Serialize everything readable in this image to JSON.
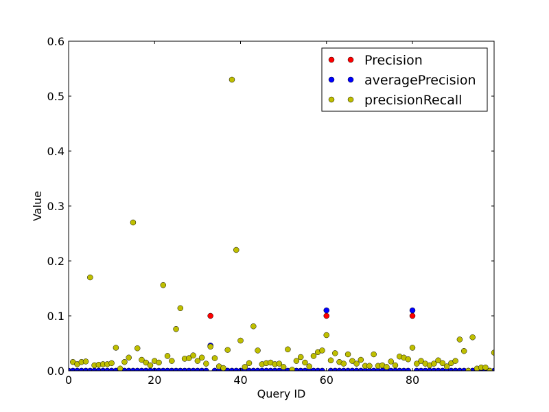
{
  "chart_data": {
    "type": "scatter",
    "title": "",
    "xlabel": "Query ID",
    "ylabel": "Value",
    "xlim": [
      0,
      99
    ],
    "ylim": [
      0,
      0.6
    ],
    "xticks": [
      0,
      20,
      40,
      60,
      80
    ],
    "yticks": [
      0.0,
      0.1,
      0.2,
      0.3,
      0.4,
      0.5,
      0.6
    ],
    "xtick_labels": [
      "0",
      "20",
      "40",
      "60",
      "80"
    ],
    "ytick_labels": [
      "0.0",
      "0.1",
      "0.2",
      "0.3",
      "0.4",
      "0.5",
      "0.6"
    ],
    "grid": false,
    "legend_position": "top-right",
    "series": [
      {
        "name": "Precision",
        "color": "#ff0000",
        "x": [
          0,
          1,
          2,
          3,
          4,
          5,
          6,
          7,
          8,
          9,
          10,
          11,
          12,
          13,
          14,
          15,
          16,
          17,
          18,
          19,
          20,
          21,
          22,
          23,
          24,
          25,
          26,
          27,
          28,
          29,
          30,
          31,
          32,
          33,
          34,
          35,
          36,
          37,
          38,
          39,
          40,
          41,
          42,
          43,
          44,
          45,
          46,
          47,
          48,
          49,
          50,
          51,
          52,
          53,
          54,
          55,
          56,
          57,
          58,
          59,
          60,
          61,
          62,
          63,
          64,
          65,
          66,
          67,
          68,
          69,
          70,
          71,
          72,
          73,
          74,
          75,
          76,
          77,
          78,
          79,
          80,
          81,
          82,
          83,
          84,
          85,
          86,
          87,
          88,
          89,
          90,
          91,
          92,
          93,
          94,
          95,
          96,
          97,
          98,
          99
        ],
        "y": [
          0,
          0,
          0,
          0,
          0,
          0,
          0,
          0,
          0,
          0,
          0,
          0,
          0,
          0,
          0,
          0,
          0,
          0,
          0,
          0,
          0,
          0,
          0,
          0,
          0,
          0,
          0,
          0,
          0,
          0,
          0,
          0,
          0,
          0.1,
          0,
          0,
          0,
          0,
          0,
          0,
          0,
          0,
          0,
          0,
          0,
          0,
          0,
          0,
          0,
          0,
          0,
          0,
          0,
          0,
          0,
          0,
          0,
          0,
          0,
          0,
          0.1,
          0,
          0,
          0,
          0,
          0,
          0,
          0,
          0,
          0,
          0,
          0,
          0,
          0,
          0,
          0,
          0,
          0,
          0,
          0,
          0.1,
          0,
          0,
          0,
          0,
          0,
          0,
          0,
          0,
          0,
          0,
          0,
          0,
          0,
          0,
          0,
          0,
          0,
          0,
          0
        ]
      },
      {
        "name": "averagePrecision",
        "color": "#0000ff",
        "x": [
          0,
          1,
          2,
          3,
          4,
          5,
          6,
          7,
          8,
          9,
          10,
          11,
          12,
          13,
          14,
          15,
          16,
          17,
          18,
          19,
          20,
          21,
          22,
          23,
          24,
          25,
          26,
          27,
          28,
          29,
          30,
          31,
          32,
          33,
          34,
          35,
          36,
          37,
          38,
          39,
          40,
          41,
          42,
          43,
          44,
          45,
          46,
          47,
          48,
          49,
          50,
          51,
          52,
          53,
          54,
          55,
          56,
          57,
          58,
          59,
          60,
          61,
          62,
          63,
          64,
          65,
          66,
          67,
          68,
          69,
          70,
          71,
          72,
          73,
          74,
          75,
          76,
          77,
          78,
          79,
          80,
          81,
          82,
          83,
          84,
          85,
          86,
          87,
          88,
          89,
          90,
          91,
          92,
          93,
          94,
          95,
          96,
          97,
          98,
          99
        ],
        "y": [
          0,
          0,
          0,
          0,
          0,
          0,
          0,
          0,
          0,
          0,
          0,
          0,
          0,
          0,
          0,
          0,
          0,
          0,
          0,
          0,
          0,
          0,
          0,
          0,
          0,
          0,
          0,
          0,
          0,
          0,
          0,
          0,
          0,
          0.046,
          0,
          0,
          0,
          0,
          0,
          0,
          0,
          0,
          0,
          0,
          0,
          0,
          0,
          0,
          0,
          0,
          0,
          0,
          0,
          0,
          0,
          0,
          0,
          0,
          0,
          0,
          0.11,
          0,
          0,
          0,
          0,
          0,
          0,
          0,
          0,
          0,
          0,
          0,
          0,
          0,
          0,
          0,
          0,
          0,
          0,
          0,
          0.11,
          0,
          0,
          0,
          0,
          0,
          0,
          0,
          0,
          0,
          0,
          0,
          0,
          0,
          0,
          0,
          0,
          0,
          0,
          0
        ]
      },
      {
        "name": "precisionRecall",
        "color": "#bfbf00",
        "x": [
          1,
          2,
          3,
          4,
          5,
          6,
          7,
          8,
          9,
          10,
          11,
          12,
          13,
          14,
          15,
          16,
          17,
          18,
          19,
          20,
          21,
          22,
          23,
          24,
          25,
          26,
          27,
          28,
          29,
          30,
          31,
          32,
          33,
          34,
          35,
          36,
          37,
          38,
          39,
          40,
          41,
          42,
          43,
          44,
          45,
          46,
          47,
          48,
          49,
          50,
          51,
          52,
          53,
          54,
          55,
          56,
          57,
          58,
          59,
          60,
          61,
          62,
          63,
          64,
          65,
          66,
          67,
          68,
          69,
          70,
          71,
          72,
          73,
          74,
          75,
          76,
          77,
          78,
          79,
          80,
          81,
          82,
          83,
          84,
          85,
          86,
          87,
          88,
          89,
          90,
          91,
          92,
          93,
          94,
          95,
          96,
          97,
          98,
          99
        ],
        "y": [
          0.016,
          0.012,
          0.016,
          0.017,
          0.17,
          0.01,
          0.011,
          0.012,
          0.012,
          0.014,
          0.042,
          0.004,
          0.016,
          0.024,
          0.27,
          0.041,
          0.02,
          0.015,
          0.01,
          0.018,
          0.015,
          0.156,
          0.027,
          0.018,
          0.076,
          0.114,
          0.022,
          0.023,
          0.028,
          0.018,
          0.024,
          0.013,
          0.044,
          0.023,
          0.008,
          0.005,
          0.038,
          0.53,
          0.22,
          0.055,
          0.007,
          0.014,
          0.081,
          0.037,
          0.012,
          0.014,
          0.015,
          0.012,
          0.013,
          0.007,
          0.039,
          0.002,
          0.018,
          0.025,
          0.015,
          0.008,
          0.027,
          0.034,
          0.037,
          0.065,
          0.019,
          0.032,
          0.016,
          0.013,
          0.03,
          0.018,
          0.013,
          0.02,
          0.009,
          0.009,
          0.03,
          0.009,
          0.01,
          0.007,
          0.017,
          0.01,
          0.026,
          0.024,
          0.021,
          0.042,
          0.013,
          0.018,
          0.013,
          0.01,
          0.013,
          0.019,
          0.014,
          0.008,
          0.014,
          0.018,
          0.057,
          0.036,
          0.0,
          0.061,
          0.004,
          0.006,
          0.006,
          0.0,
          0.033
        ]
      }
    ]
  }
}
